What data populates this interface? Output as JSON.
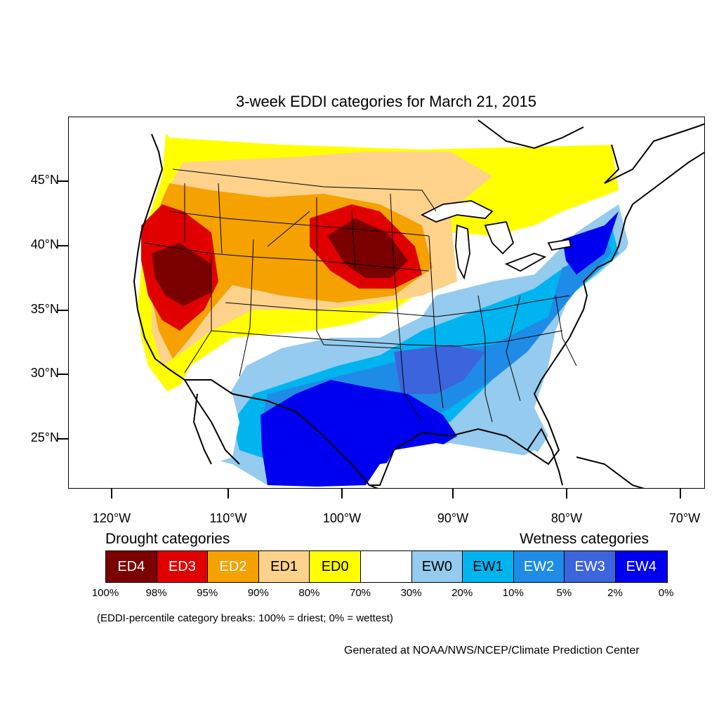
{
  "title": "3-week EDDI categories for March 21, 2015",
  "latitude_labels": [
    "45°N",
    "40°N",
    "35°N",
    "30°N",
    "25°N"
  ],
  "longitude_labels": [
    "120°W",
    "110°W",
    "100°W",
    "90°W",
    "80°W",
    "70°W"
  ],
  "legend": {
    "drought_heading": "Drought categories",
    "wetness_heading": "Wetness categories",
    "categories": [
      {
        "label": "ED4",
        "color": "#7b0000",
        "text_color": "#ffffff"
      },
      {
        "label": "ED3",
        "color": "#e00000",
        "text_color": "#ffffff"
      },
      {
        "label": "ED2",
        "color": "#f5a100",
        "text_color": "#ffffff"
      },
      {
        "label": "ED1",
        "color": "#ffd28c",
        "text_color": "#000000"
      },
      {
        "label": "ED0",
        "color": "#ffff00",
        "text_color": "#000000"
      },
      {
        "label": "",
        "color": "#ffffff",
        "text_color": "#000000"
      },
      {
        "label": "EW0",
        "color": "#94cbee",
        "text_color": "#000000"
      },
      {
        "label": "EW1",
        "color": "#00b4f0",
        "text_color": "#000000"
      },
      {
        "label": "EW2",
        "color": "#1e8ce6",
        "text_color": "#ffffff"
      },
      {
        "label": "EW3",
        "color": "#3c64dc",
        "text_color": "#ffffff"
      },
      {
        "label": "EW4",
        "color": "#0000f0",
        "text_color": "#ffffff"
      }
    ],
    "breaks": [
      "100%",
      "98%",
      "95%",
      "90%",
      "80%",
      "70%",
      "30%",
      "20%",
      "10%",
      "5%",
      "2%",
      "0%"
    ]
  },
  "note": "(EDDI-percentile category breaks: 100% = driest; 0% = wettest)",
  "credit": "Generated at NOAA/NWS/NCEP/Climate Prediction Center"
}
